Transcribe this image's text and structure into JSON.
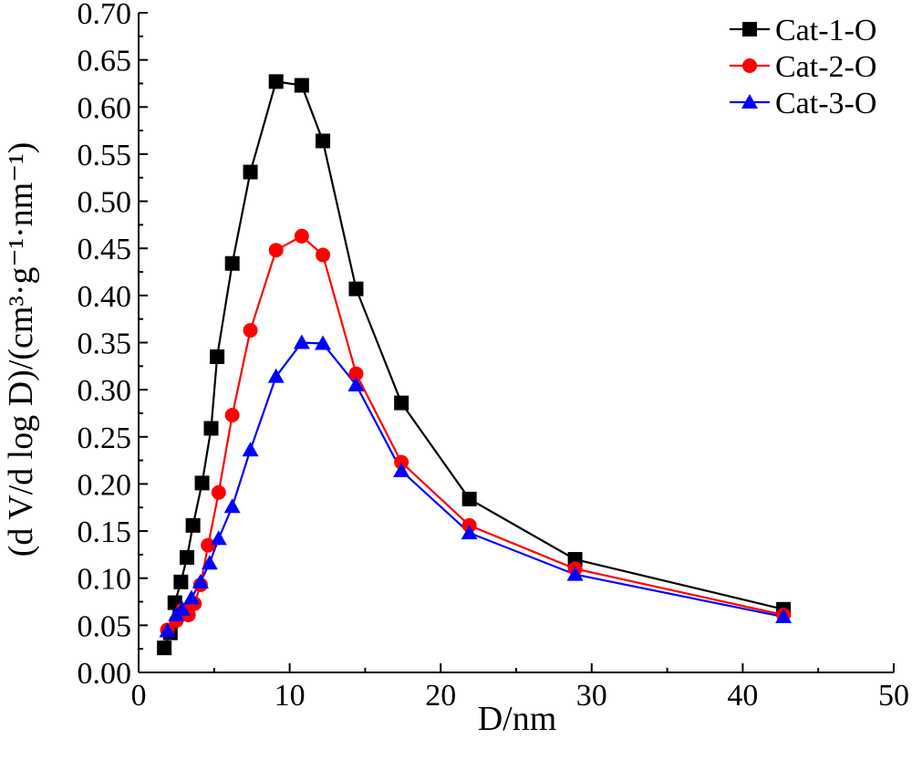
{
  "chart_data": {
    "type": "line",
    "xlabel": "D/nm",
    "ylabel": "(d V/d log D)/(cm³·g⁻¹·nm⁻¹)",
    "xlim": [
      0,
      50
    ],
    "ylim": [
      0,
      0.7
    ],
    "xticks": [
      "0",
      "10",
      "20",
      "30",
      "40",
      "50"
    ],
    "yticks": [
      "0.00",
      "0.05",
      "0.10",
      "0.15",
      "0.20",
      "0.25",
      "0.30",
      "0.35",
      "0.40",
      "0.45",
      "0.50",
      "0.55",
      "0.60",
      "0.65",
      "0.70"
    ],
    "grid": false,
    "legend_position": "top-right",
    "series": [
      {
        "name": "Cat-1-O",
        "color": "#000000",
        "marker": "square",
        "points": [
          [
            1.7,
            0.026
          ],
          [
            2.1,
            0.042
          ],
          [
            2.4,
            0.074
          ],
          [
            2.8,
            0.096
          ],
          [
            3.2,
            0.122
          ],
          [
            3.6,
            0.156
          ],
          [
            4.2,
            0.201
          ],
          [
            4.8,
            0.259
          ],
          [
            5.2,
            0.335
          ],
          [
            6.2,
            0.434
          ],
          [
            7.4,
            0.531
          ],
          [
            9.1,
            0.627
          ],
          [
            10.8,
            0.623
          ],
          [
            12.2,
            0.564
          ],
          [
            14.4,
            0.407
          ],
          [
            17.4,
            0.286
          ],
          [
            21.9,
            0.184
          ],
          [
            28.9,
            0.12
          ],
          [
            42.7,
            0.067
          ]
        ]
      },
      {
        "name": "Cat-2-O",
        "color": "#ff0000",
        "marker": "circle",
        "points": [
          [
            1.9,
            0.045
          ],
          [
            2.5,
            0.055
          ],
          [
            2.9,
            0.066
          ],
          [
            3.3,
            0.061
          ],
          [
            3.7,
            0.073
          ],
          [
            4.1,
            0.093
          ],
          [
            4.6,
            0.135
          ],
          [
            5.3,
            0.191
          ],
          [
            6.2,
            0.273
          ],
          [
            7.4,
            0.363
          ],
          [
            9.1,
            0.448
          ],
          [
            10.8,
            0.463
          ],
          [
            12.2,
            0.443
          ],
          [
            14.4,
            0.317
          ],
          [
            17.4,
            0.223
          ],
          [
            21.9,
            0.156
          ],
          [
            28.9,
            0.11
          ],
          [
            42.7,
            0.061
          ]
        ]
      },
      {
        "name": "Cat-3-O",
        "color": "#0000ff",
        "marker": "triangle",
        "points": [
          [
            1.9,
            0.044
          ],
          [
            2.5,
            0.061
          ],
          [
            2.9,
            0.067
          ],
          [
            3.5,
            0.079
          ],
          [
            4.1,
            0.096
          ],
          [
            4.7,
            0.116
          ],
          [
            5.3,
            0.142
          ],
          [
            6.2,
            0.176
          ],
          [
            7.4,
            0.236
          ],
          [
            9.1,
            0.314
          ],
          [
            10.8,
            0.35
          ],
          [
            12.2,
            0.349
          ],
          [
            14.4,
            0.305
          ],
          [
            17.4,
            0.214
          ],
          [
            21.9,
            0.148
          ],
          [
            28.9,
            0.104
          ],
          [
            42.7,
            0.059
          ]
        ]
      }
    ]
  }
}
